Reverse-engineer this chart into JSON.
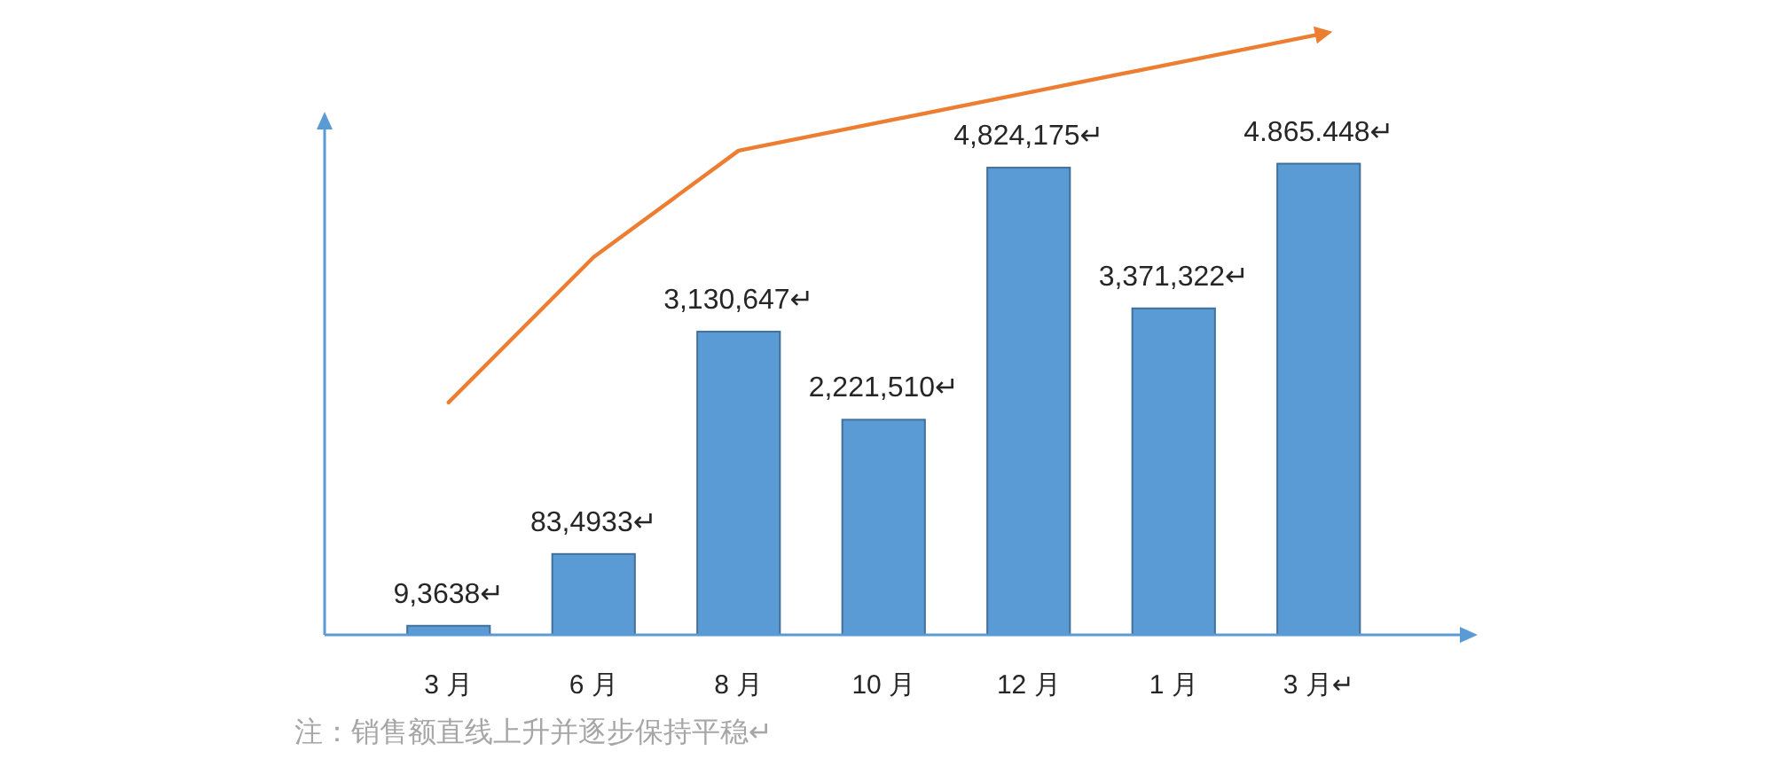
{
  "chart_data": {
    "type": "bar",
    "categories": [
      "3 月",
      "6 月",
      "8 月",
      "10 月",
      "12 月",
      "1 月",
      "3 月↵"
    ],
    "series": [
      {
        "color": "#5b9bd5",
        "values": [
          93638,
          834933,
          3130647,
          2221510,
          4824175,
          3371322,
          4865448
        ],
        "value_labels": [
          "9,3638↵",
          "83,4933↵",
          "3,130,647↵",
          "2,221,510↵",
          "4,824,175↵",
          "3,371,322↵",
          "4.865.448↵"
        ]
      },
      {
        "type": "line",
        "color": "#ed7d31",
        "values": [
          2400000,
          3900000,
          5000000,
          5300000,
          5600000,
          5900000,
          6200000
        ]
      }
    ],
    "annotations": [
      "注：销售额直线上升并逐步保持平稳↵"
    ]
  }
}
